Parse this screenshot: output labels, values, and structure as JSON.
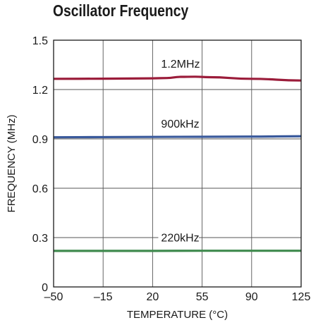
{
  "chart_data": {
    "type": "line",
    "title": "Oscillator Frequency",
    "xlabel": "TEMPERATURE (°C)",
    "ylabel": "FREQUENCY (MHz)",
    "xlim": [
      -50,
      125
    ],
    "ylim": [
      0,
      1.5
    ],
    "x_ticks": [
      -50,
      -15,
      20,
      55,
      90,
      125
    ],
    "x_tick_labels": [
      "–50",
      "–15",
      "20",
      "55",
      "90",
      "125"
    ],
    "y_ticks": [
      0,
      0.3,
      0.6,
      0.9,
      1.2,
      1.5
    ],
    "y_tick_labels": [
      "0",
      "0.3",
      "0.6",
      "0.9",
      "1.2",
      "1.5"
    ],
    "grid": true,
    "series": [
      {
        "name": "1.2MHz",
        "color": "#9b1c3a",
        "x": [
          -50,
          -15,
          20,
          30,
          40,
          50,
          60,
          90,
          125
        ],
        "y": [
          1.265,
          1.266,
          1.268,
          1.27,
          1.277,
          1.278,
          1.275,
          1.265,
          1.255
        ]
      },
      {
        "name": "900kHz",
        "color": "#3a5a9c",
        "x": [
          -50,
          -15,
          20,
          55,
          90,
          125
        ],
        "y": [
          0.91,
          0.911,
          0.912,
          0.913,
          0.914,
          0.916
        ]
      },
      {
        "name": "220kHz",
        "color": "#3f8a4e",
        "x": [
          -50,
          -15,
          20,
          55,
          90,
          125
        ],
        "y": [
          0.219,
          0.219,
          0.219,
          0.22,
          0.22,
          0.22
        ]
      }
    ]
  }
}
